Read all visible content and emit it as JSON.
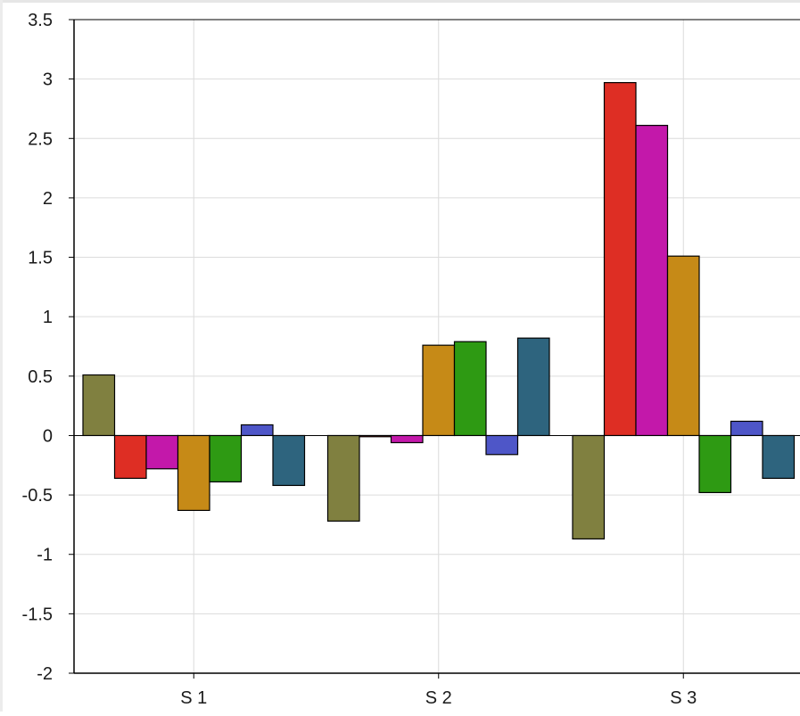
{
  "chart_data": {
    "type": "bar",
    "title": "",
    "xlabel": "",
    "ylabel": "",
    "categories": [
      "S 1",
      "S 2",
      "S 3"
    ],
    "ylim": [
      -2,
      3.5
    ],
    "yticks": [
      3.5,
      3,
      2.5,
      2,
      1.5,
      1,
      0.5,
      0,
      -0.5,
      -1,
      -1.5,
      -2
    ],
    "grid": true,
    "legend": "none",
    "colors": [
      "#808040",
      "#DE2E24",
      "#C318AA",
      "#C68A17",
      "#2E9A13",
      "#4E56C8",
      "#2E647E"
    ],
    "series": [
      {
        "values": [
          0.51,
          -0.72,
          -0.87
        ]
      },
      {
        "values": [
          -0.36,
          -0.01,
          2.97
        ]
      },
      {
        "values": [
          -0.28,
          -0.06,
          2.61
        ]
      },
      {
        "values": [
          -0.63,
          0.76,
          1.51
        ]
      },
      {
        "values": [
          -0.39,
          0.79,
          -0.48
        ]
      },
      {
        "values": [
          0.09,
          -0.16,
          0.12
        ]
      },
      {
        "values": [
          -0.42,
          0.82,
          -0.36
        ]
      }
    ]
  }
}
